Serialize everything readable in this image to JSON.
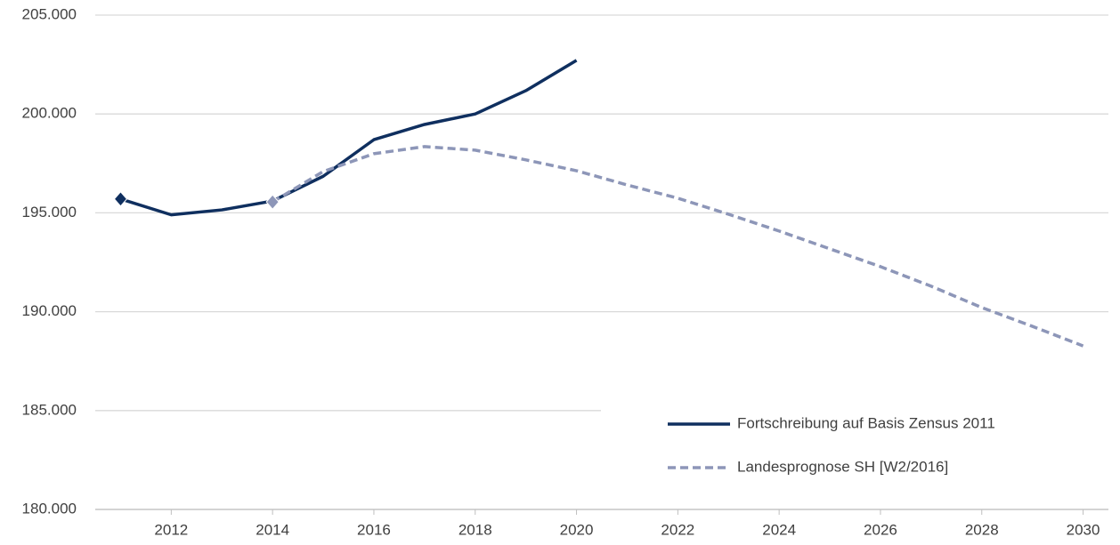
{
  "chart_data": {
    "type": "line",
    "x": [
      2011,
      2012,
      2013,
      2014,
      2015,
      2016,
      2017,
      2018,
      2019,
      2020,
      2021,
      2022,
      2023,
      2024,
      2025,
      2026,
      2027,
      2028,
      2029,
      2030
    ],
    "xlim": [
      2010.5,
      2030.5
    ],
    "xticks": [
      2012,
      2014,
      2016,
      2018,
      2020,
      2022,
      2024,
      2026,
      2028,
      2030
    ],
    "ylim": [
      180000,
      205000
    ],
    "yticks": [
      {
        "value": 180000,
        "label": "180.000"
      },
      {
        "value": 185000,
        "label": "185.000"
      },
      {
        "value": 190000,
        "label": "190.000"
      },
      {
        "value": 195000,
        "label": "195.000"
      },
      {
        "value": 200000,
        "label": "200.000"
      },
      {
        "value": 205000,
        "label": "205.000"
      }
    ],
    "grid": true,
    "legend": "bottom-right",
    "series": [
      {
        "name": "Fortschreibung auf Basis Zensus 2011",
        "color": "#0f2f5f",
        "dash": false,
        "values": [
          195700,
          194900,
          195150,
          195600,
          196850,
          198700,
          199470,
          200000,
          201180,
          202710,
          null,
          null,
          null,
          null,
          null,
          null,
          null,
          null,
          null,
          null
        ]
      },
      {
        "name": "Landesprognose SH [W2/2016]",
        "color": "#8d96b8",
        "dash": true,
        "values": [
          null,
          null,
          null,
          195550,
          197090,
          197990,
          198350,
          198170,
          197680,
          197130,
          196410,
          195740,
          194930,
          194080,
          193180,
          192280,
          191290,
          190210,
          189260,
          188270
        ]
      }
    ]
  }
}
